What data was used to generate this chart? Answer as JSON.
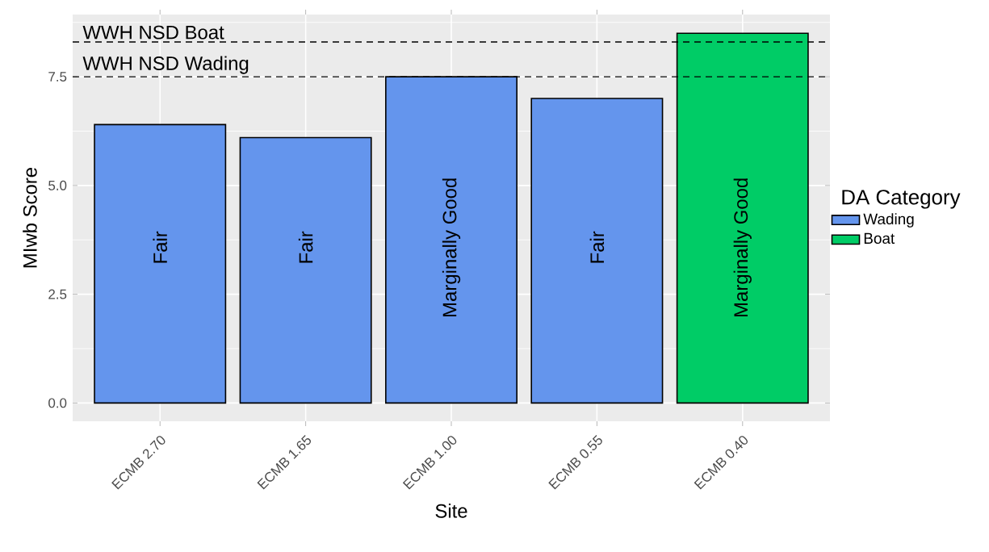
{
  "chart_data": {
    "type": "bar",
    "xlabel": "Site",
    "ylabel": "MIwb Score",
    "legend_title": "DA Category",
    "categories": [
      "ECMB 2.70",
      "ECMB 1.65",
      "ECMB 1.00",
      "ECMB 0.55",
      "ECMB 0.40"
    ],
    "series": [
      {
        "name": "Wading",
        "color": "#6495ed",
        "values": [
          6.4,
          6.1,
          7.5,
          7.0,
          null
        ]
      },
      {
        "name": "Boat",
        "color": "#00cc66",
        "values": [
          null,
          null,
          null,
          null,
          8.5
        ]
      }
    ],
    "ylim": [
      -0.42,
      8.93
    ],
    "yticks": [
      {
        "value": 0,
        "label": "0.0"
      },
      {
        "value": 2.5,
        "label": "2.5"
      },
      {
        "value": 5,
        "label": "5.0"
      },
      {
        "value": 7.5,
        "label": "7.5"
      }
    ],
    "ref_lines": [
      {
        "axis": "y",
        "value": 8.3,
        "label": "WWH NSD Boat",
        "line_style": "dashed",
        "color": "#000000"
      },
      {
        "axis": "y",
        "value": 7.5,
        "label": "WWH NSD Wading",
        "line_style": "dashed",
        "color": "#000000"
      }
    ],
    "annotations": [
      "Fair",
      "Fair",
      "Marginally Good",
      "Fair",
      "Marginally Good"
    ],
    "grid": true,
    "legend": "right"
  }
}
